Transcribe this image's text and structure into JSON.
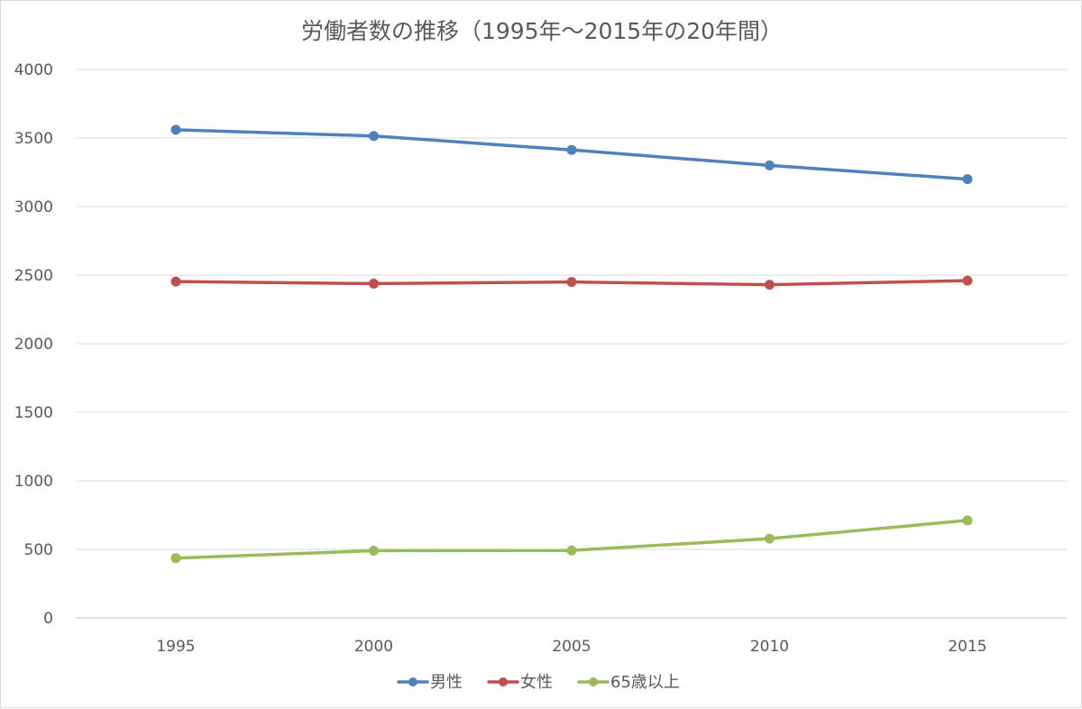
{
  "chart_data": {
    "type": "line",
    "title": "労働者数の推移（1995年～2015年の20年間）",
    "categories": [
      "1995",
      "2000",
      "2005",
      "2010",
      "2015"
    ],
    "y_ticks": [
      "0",
      "500",
      "1000",
      "1500",
      "2000",
      "2500",
      "3000",
      "3500",
      "4000"
    ],
    "ylim": [
      0,
      4000
    ],
    "grid": true,
    "legend_position": "bottom",
    "series": [
      {
        "name": "男性",
        "color": "#4F81BD",
        "values": [
          3560,
          3515,
          3413,
          3300,
          3200
        ]
      },
      {
        "name": "女性",
        "color": "#C0504D",
        "values": [
          2453,
          2438,
          2450,
          2430,
          2460
        ]
      },
      {
        "name": "65歳以上",
        "color": "#9BBB59",
        "values": [
          436,
          490,
          492,
          578,
          711
        ]
      }
    ]
  }
}
